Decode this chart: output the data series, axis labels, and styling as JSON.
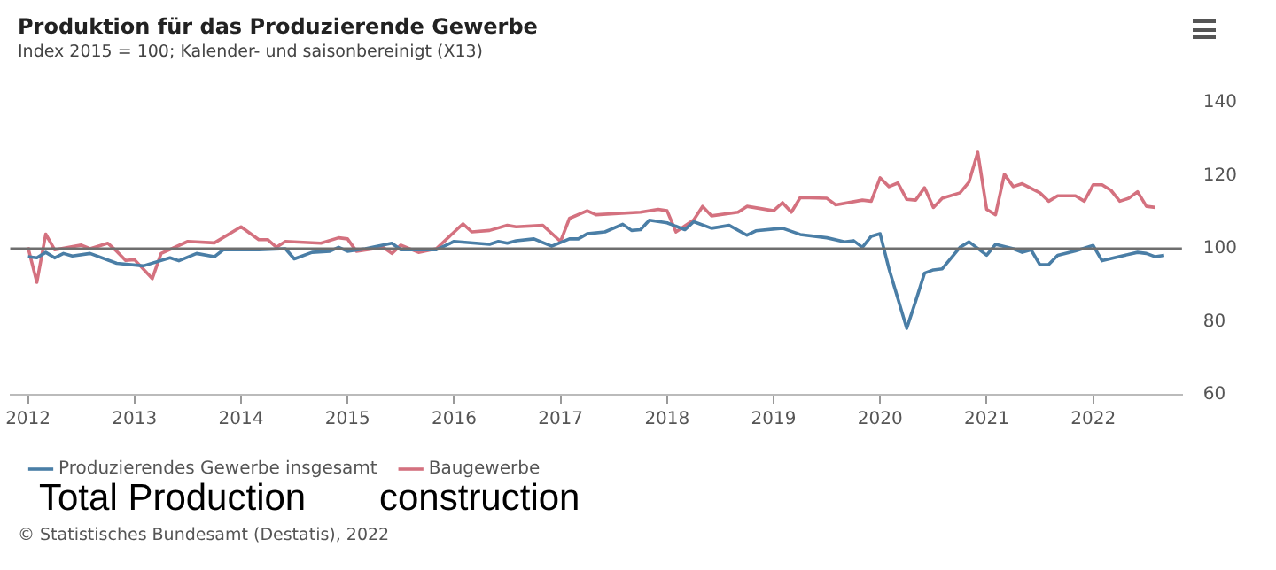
{
  "chart_data": {
    "type": "line",
    "title": "Produktion für das Produzierende Gewerbe",
    "subtitle": "Index 2015 = 100; Kalender- und saisonbereinigt (X13)",
    "xlim": [
      "2011-11",
      "2022-11"
    ],
    "xticks": [
      "2012",
      "2013",
      "2014",
      "2015",
      "2016",
      "2017",
      "2018",
      "2019",
      "2020",
      "2021",
      "2022"
    ],
    "ylim": [
      60,
      140
    ],
    "yticks": [
      60,
      80,
      100,
      120,
      140
    ],
    "grid": false,
    "legend": "bottom",
    "marker": "none",
    "ref_lines": [
      {
        "axis": "y",
        "value": 100,
        "label": null,
        "color": "#6e6e6e"
      }
    ],
    "annotations": [
      "Total Production",
      "construction",
      "© Statistisches Bundesamt (Destatis), 2022"
    ],
    "series": [
      {
        "name": "Produzierendes Gewerbe insgesamt",
        "color": "#4a7ea6",
        "x": [
          "2012-01",
          "2012-02",
          "2012-03",
          "2012-04",
          "2012-05",
          "2012-06",
          "2012-08",
          "2012-11",
          "2013-02",
          "2013-05",
          "2013-06",
          "2013-08",
          "2013-10",
          "2013-11",
          "2014-03",
          "2014-06",
          "2014-07",
          "2014-09",
          "2014-11",
          "2014-12",
          "2015-01",
          "2015-03",
          "2015-06",
          "2015-07",
          "2015-11",
          "2016-01",
          "2016-05",
          "2016-06",
          "2016-07",
          "2016-08",
          "2016-10",
          "2016-12",
          "2017-02",
          "2017-03",
          "2017-04",
          "2017-06",
          "2017-08",
          "2017-09",
          "2017-10",
          "2017-11",
          "2018-01",
          "2018-03",
          "2018-04",
          "2018-06",
          "2018-08",
          "2018-10",
          "2018-11",
          "2019-02",
          "2019-04",
          "2019-07",
          "2019-09",
          "2019-10",
          "2019-11",
          "2019-12",
          "2020-01",
          "2020-02",
          "2020-04",
          "2020-05",
          "2020-06",
          "2020-07",
          "2020-08",
          "2020-10",
          "2020-11",
          "2020-12",
          "2021-01",
          "2021-02",
          "2021-04",
          "2021-05",
          "2021-06",
          "2021-07",
          "2021-08",
          "2021-09",
          "2021-11",
          "2022-01",
          "2022-02",
          "2022-04",
          "2022-06",
          "2022-07",
          "2022-08",
          "2022-09"
        ],
        "values": [
          97.8,
          97.5,
          99,
          97.5,
          98.7,
          98,
          98.7,
          96,
          95.3,
          97.5,
          96.7,
          98.7,
          97.8,
          99.7,
          99.7,
          100,
          97.2,
          99,
          99.3,
          100.4,
          99.3,
          100,
          101.5,
          99.7,
          99.7,
          102,
          101.2,
          102,
          101.5,
          102.2,
          102.7,
          100.7,
          102.7,
          102.7,
          104.1,
          104.6,
          106.7,
          105,
          105.2,
          107.8,
          107.1,
          105.2,
          107.4,
          105.6,
          106.4,
          103.7,
          104.9,
          105.6,
          103.9,
          103,
          101.9,
          102.2,
          100.4,
          103.4,
          104.1,
          94.5,
          78.2,
          85.6,
          93.3,
          94.2,
          94.5,
          100.4,
          101.9,
          100.1,
          98.2,
          101.2,
          100,
          99,
          99.7,
          95.6,
          95.7,
          98.2,
          99.4,
          100.9,
          96.7,
          97.9,
          99,
          98.7,
          97.8,
          98.2
        ]
      },
      {
        "name": "Baugewerbe",
        "color": "#d4717f",
        "x": [
          "2012-01",
          "2012-02",
          "2012-03",
          "2012-04",
          "2012-07",
          "2012-08",
          "2012-10",
          "2012-11",
          "2012-12",
          "2013-01",
          "2013-03",
          "2013-04",
          "2013-07",
          "2013-10",
          "2014-01",
          "2014-03",
          "2014-04",
          "2014-05",
          "2014-06",
          "2014-10",
          "2014-12",
          "2015-01",
          "2015-02",
          "2015-05",
          "2015-06",
          "2015-07",
          "2015-09",
          "2015-11",
          "2016-02",
          "2016-03",
          "2016-05",
          "2016-07",
          "2016-08",
          "2016-11",
          "2017-01",
          "2017-02",
          "2017-04",
          "2017-05",
          "2017-10",
          "2017-12",
          "2018-01",
          "2018-02",
          "2018-04",
          "2018-05",
          "2018-06",
          "2018-09",
          "2018-10",
          "2019-01",
          "2019-02",
          "2019-03",
          "2019-04",
          "2019-07",
          "2019-08",
          "2019-11",
          "2019-12",
          "2020-01",
          "2020-02",
          "2020-03",
          "2020-04",
          "2020-05",
          "2020-06",
          "2020-07",
          "2020-08",
          "2020-10",
          "2020-11",
          "2020-12",
          "2021-01",
          "2021-02",
          "2021-03",
          "2021-04",
          "2021-05",
          "2021-07",
          "2021-08",
          "2021-09",
          "2021-11",
          "2021-12",
          "2022-01",
          "2022-02",
          "2022-03",
          "2022-04",
          "2022-05",
          "2022-06",
          "2022-07",
          "2022-08"
        ],
        "values": [
          100.4,
          90.8,
          104,
          99.7,
          101,
          100,
          101.5,
          99.3,
          96.8,
          97,
          91.8,
          98.7,
          102,
          101.6,
          106,
          102.5,
          102.5,
          100.4,
          102,
          101.5,
          103,
          102.7,
          99.3,
          100.4,
          98.7,
          101,
          99,
          100,
          106.8,
          104.6,
          105,
          106.4,
          106,
          106.4,
          102,
          108.3,
          110.4,
          109.3,
          110,
          110.8,
          110.4,
          104.6,
          107.9,
          111.6,
          109,
          110,
          111.6,
          110.4,
          112.6,
          110,
          114,
          113.8,
          112,
          113.3,
          113,
          119.4,
          117,
          118,
          113.5,
          113.3,
          116.7,
          111.3,
          113.8,
          115.3,
          118.2,
          126.4,
          110.8,
          109.3,
          120.4,
          117,
          117.8,
          115.3,
          113,
          114.5,
          114.5,
          113,
          117.5,
          117.5,
          116,
          113,
          113.8,
          115.6,
          111.6,
          111.3
        ]
      }
    ]
  }
}
